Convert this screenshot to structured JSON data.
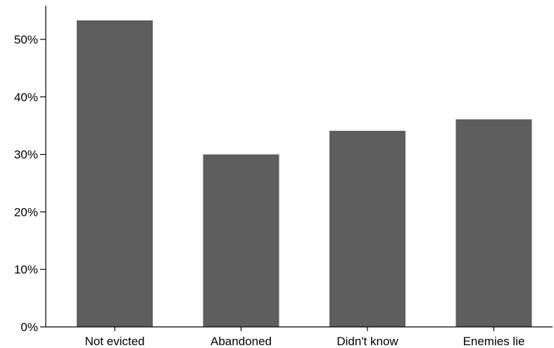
{
  "chart_data": {
    "type": "bar",
    "categories": [
      "Not evicted",
      "Abandoned",
      "Didn't know",
      "Enemies lie"
    ],
    "values": [
      53.3,
      30.0,
      34.1,
      36.1
    ],
    "y_ticks": [
      "0%",
      "10%",
      "20%",
      "30%",
      "40%",
      "50%"
    ],
    "y_tick_values": [
      0,
      10,
      20,
      30,
      40,
      50
    ],
    "ylim": [
      0,
      56
    ],
    "bar_color": "#5e5e5e",
    "axis_color": "#000000",
    "grid": false,
    "legend": "none"
  }
}
